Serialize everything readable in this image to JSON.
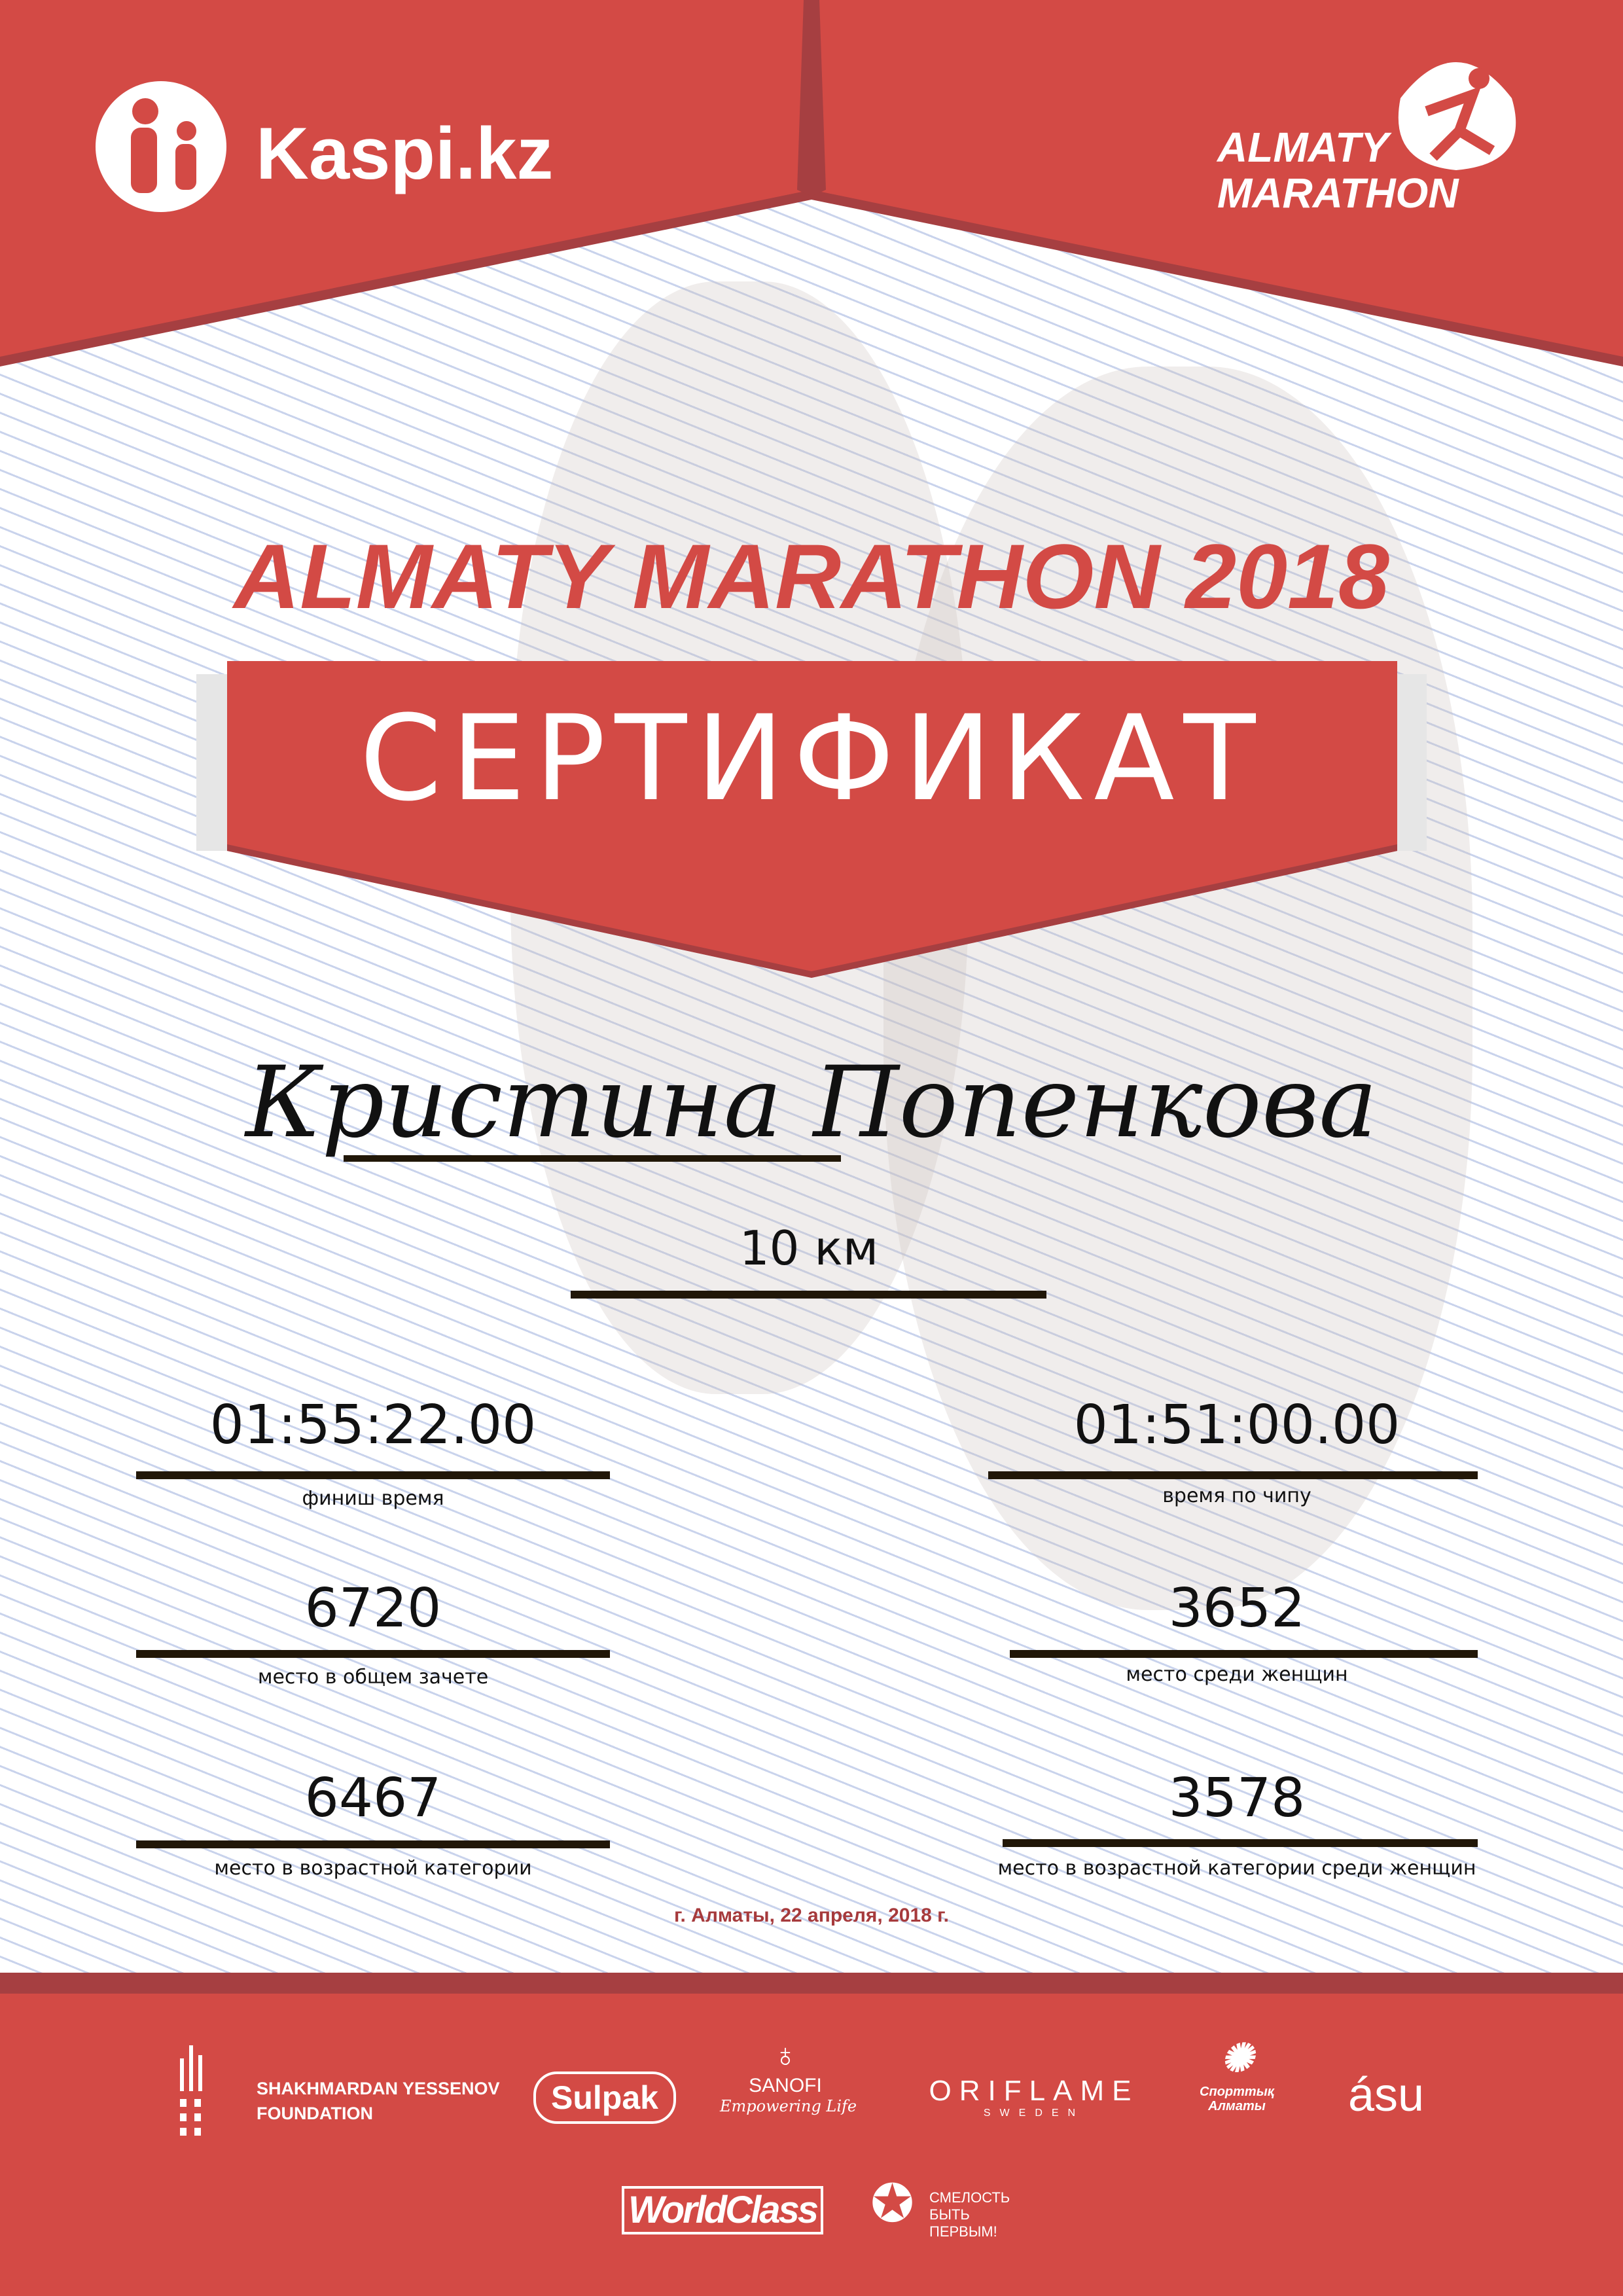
{
  "colors": {
    "brand_red": "#d34a45",
    "dark_red": "#a63f41",
    "line": "#211708",
    "date": "#a63a3c"
  },
  "header": {
    "kaspi_logo": "Kaspi.kz",
    "kaspi_icon": "kaspi-family-icon",
    "marathon_logo_line1": "ALMATY",
    "marathon_logo_line2": "MARATHON",
    "marathon_icon": "runner-icon"
  },
  "title": "ALMATY MARATHON 2018",
  "banner": "СЕРТИФИКАТ",
  "participant": {
    "name": "Кристина Попенкова",
    "distance": "10 км"
  },
  "results": {
    "finish_time": {
      "value": "01:55:22.00",
      "label": "финиш время"
    },
    "chip_time": {
      "value": "01:51:00.00",
      "label": "время по чипу"
    },
    "overall_place": {
      "value": "6720",
      "label": "место в общем зачете"
    },
    "women_place": {
      "value": "3652",
      "label": "место среди женщин"
    },
    "age_place": {
      "value": "6467",
      "label": "место в возрастной категории"
    },
    "women_age_place": {
      "value": "3578",
      "label": "место в возрастной категории среди женщин"
    }
  },
  "date": "г. Алматы, 22 апреля, 2018 г.",
  "sponsors": {
    "yessenov_line1": "SHAKHMARDAN YESSENOV",
    "yessenov_line2": "FOUNDATION",
    "sulpak": "Sulpak",
    "sanofi": "SANOFI",
    "sanofi_tagline": "Empowering Life",
    "oriflame": "ORIFLAME",
    "oriflame_sub": "SWEDEN",
    "sport_almaty_1": "Спорттық",
    "sport_almaty_2": "Алматы",
    "asu": "ásu",
    "worldclass": "WorldClass",
    "fund_line1": "СМЕЛОСТЬ",
    "fund_line2": "БЫТЬ",
    "fund_line3": "ПЕРВЫМ!"
  }
}
